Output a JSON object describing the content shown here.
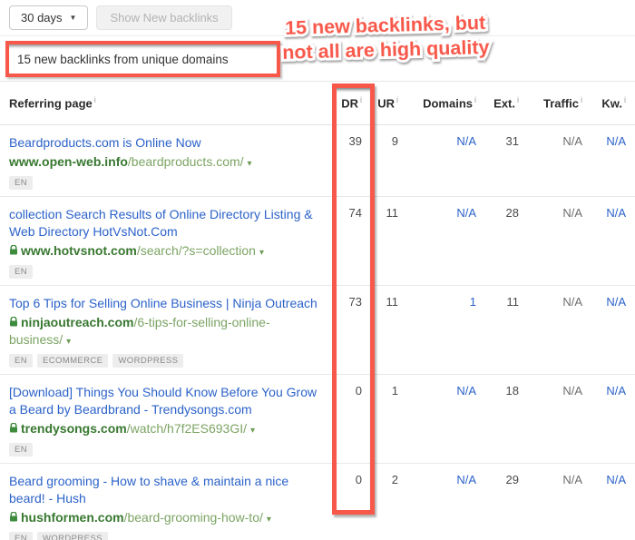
{
  "toolbar": {
    "period_label": "30 days",
    "show_button": "Show New backlinks"
  },
  "annotation": {
    "summary": "15 new backlinks from unique domains",
    "callout_line1": "15 new backlinks, but",
    "callout_line2": "not all are high quality",
    "accent_red": "#f8584a"
  },
  "table": {
    "info_icon": "i",
    "columns": [
      "Referring page",
      "DR",
      "UR",
      "Domains",
      "Ext.",
      "Traffic",
      "Kw."
    ],
    "rows": [
      {
        "title": "Beardproducts.com is Online Now",
        "lock": false,
        "domain": "www.open-web.info",
        "path": "/beardproducts.com/",
        "badges": [
          "EN"
        ],
        "dr": "39",
        "ur": "9",
        "domains": "N/A",
        "ext": "31",
        "traffic": "N/A",
        "kw": "N/A"
      },
      {
        "title": "collection Search Results of Online Directory Listing & Web Directory HotVsNot.Com",
        "lock": true,
        "domain": "www.hotvsnot.com",
        "path": "/search/?s=collection",
        "badges": [
          "EN"
        ],
        "dr": "74",
        "ur": "11",
        "domains": "N/A",
        "ext": "28",
        "traffic": "N/A",
        "kw": "N/A"
      },
      {
        "title": "Top 6 Tips for Selling Online Business | Ninja Outreach",
        "lock": true,
        "domain": "ninjaoutreach.com",
        "path": "/6-tips-for-selling-online-business/",
        "badges": [
          "EN",
          "ECOMMERCE",
          "WORDPRESS"
        ],
        "dr": "73",
        "ur": "11",
        "domains": "1",
        "ext": "11",
        "traffic": "N/A",
        "kw": "N/A"
      },
      {
        "title": "[Download] Things You Should Know Before You Grow a Beard by Beardbrand - Trendysongs.com",
        "lock": true,
        "domain": "trendysongs.com",
        "path": "/watch/h7f2ES693GI/",
        "badges": [
          "EN"
        ],
        "dr": "0",
        "ur": "1",
        "domains": "N/A",
        "ext": "18",
        "traffic": "N/A",
        "kw": "N/A"
      },
      {
        "title": "Beard grooming - How to shave & maintain a nice beard! - Hush",
        "lock": true,
        "domain": "hushformen.com",
        "path": "/beard-grooming-how-to/",
        "badges": [
          "EN",
          "WORDPRESS"
        ],
        "dr": "0",
        "ur": "2",
        "domains": "N/A",
        "ext": "29",
        "traffic": "N/A",
        "kw": "N/A"
      }
    ]
  },
  "colors": {
    "accent_red": "#f8584a",
    "link_blue": "#2b62c9",
    "domain_green": "#387830",
    "path_green": "#7ca464",
    "na_gray": "#6e6e6e"
  }
}
